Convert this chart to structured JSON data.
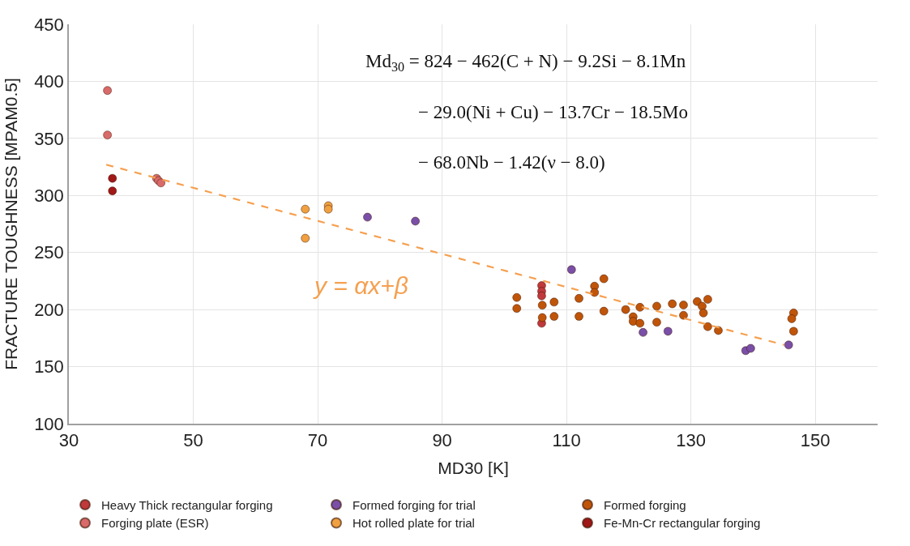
{
  "chart_data": {
    "type": "scatter",
    "xlabel": "MD30 [K]",
    "ylabel": "FRACTURE TOUGHNESS [MPAM0.5]",
    "xlim": [
      30,
      160
    ],
    "xticks": [
      30,
      50,
      70,
      90,
      110,
      130,
      150
    ],
    "ylim": [
      100,
      450
    ],
    "yticks": [
      100,
      150,
      200,
      250,
      300,
      350,
      400,
      450
    ],
    "grid": true,
    "legend": "bottom",
    "marker": "circle",
    "series": [
      {
        "name": "Heavy Thick rectangular forging",
        "color": "#c0393b",
        "x": [
          106,
          106,
          106,
          106
        ],
        "values": [
          221,
          216,
          212,
          188
        ]
      },
      {
        "name": "Formed forging for trial",
        "color": "#7a4fa8",
        "x": [
          78,
          85.7,
          110.8,
          122.3,
          126.3,
          138.8,
          139.6,
          145.7
        ],
        "values": [
          281,
          277.5,
          235,
          180,
          181,
          164,
          166,
          169
        ]
      },
      {
        "name": "Formed forging",
        "color": "#c0550a",
        "x": [
          102,
          102,
          106.1,
          106.1,
          108,
          108,
          112,
          112,
          114.5,
          114.5,
          116,
          116,
          119.5,
          120.7,
          120.7,
          121.8,
          121.8,
          124.5,
          124.5,
          127,
          128.8,
          128.8,
          131,
          131.8,
          132,
          132.7,
          132.7,
          134.4,
          146.5,
          146.2,
          146.5
        ],
        "values": [
          210.6,
          201,
          203.8,
          193,
          206.6,
          194,
          209.8,
          194,
          220.5,
          215,
          227,
          198.6,
          200,
          193.7,
          189.7,
          202,
          188,
          203,
          188.9,
          205,
          204,
          195,
          207,
          203,
          197,
          209,
          185,
          181.7,
          197,
          192,
          181
        ]
      },
      {
        "name": "Forging plate (ESR)",
        "color": "#d96a6a",
        "x": [
          36.2,
          36.2,
          44.1,
          44.4,
          44.8
        ],
        "values": [
          392,
          353,
          315,
          313,
          311
        ]
      },
      {
        "name": "Hot rolled plate for trial",
        "color": "#f0a040",
        "x": [
          68,
          71.7,
          71.7,
          68
        ],
        "values": [
          288,
          291,
          288,
          262.5
        ]
      },
      {
        "name": "Fe-Mn-Cr rectangular forging",
        "color": "#a01818",
        "x": [
          37,
          37
        ],
        "values": [
          315,
          304
        ]
      },
      {
        "type": "line",
        "color": "#f5a050",
        "line_style": "dashed",
        "marker": "none",
        "x": [
          36,
          145
        ],
        "values": [
          327,
          169
        ]
      }
    ],
    "annotations": [
      "Md$_{30}$ = 824 − 462(C + N) − 9.2Si − 8.1Mn",
      "− 29.0(Ni + Cu) − 13.7Cr − 18.5Mo",
      "− 68.0Nb − 1.42(ν − 8.0)",
      "y = αx+β"
    ]
  }
}
